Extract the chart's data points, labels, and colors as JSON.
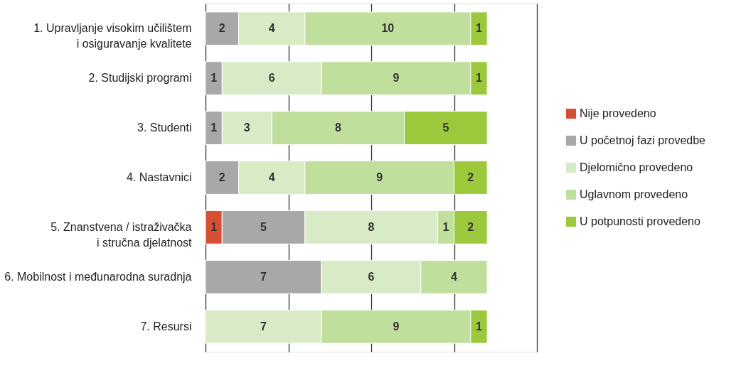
{
  "chart_data": {
    "type": "bar",
    "orientation": "horizontal",
    "stacked": true,
    "data_labels": true,
    "grid": "x",
    "tick_labels": "y",
    "legend": "right",
    "categories": [
      "1. Upravljanje visokim učilištem\ni osiguravanje kvalitete",
      "2. Studijski programi",
      "3. Studenti",
      "4. Nastavnici",
      "5. Znanstvena / istraživačka\ni stručna djelatnost",
      "6. Mobilnost i međunarodna suradnja",
      "7. Resursi"
    ],
    "xlim": [
      0,
      20
    ],
    "xticks": [
      {
        "value": 0,
        "label": null
      },
      {
        "value": 5,
        "label": null
      },
      {
        "value": 10,
        "label": null
      },
      {
        "value": 15,
        "label": null
      },
      {
        "value": 20,
        "label": null
      }
    ],
    "series": [
      {
        "name": "Nije provedeno",
        "color": "#d64f35",
        "values": [
          null,
          null,
          null,
          null,
          1,
          null,
          null
        ]
      },
      {
        "name": "U početnoj fazi provedbe",
        "color": "#a8a8aa",
        "values": [
          2,
          1,
          1,
          2,
          5,
          7,
          null
        ]
      },
      {
        "name": "Djelomično provedeno",
        "color": "#d9ebc6",
        "values": [
          4,
          6,
          3,
          4,
          8,
          6,
          7
        ]
      },
      {
        "name": "Uglavnom provedeno",
        "color": "#c0df9c",
        "values": [
          10,
          9,
          8,
          9,
          1,
          4,
          9
        ]
      },
      {
        "name": "U potpunosti provedeno",
        "color": "#9bc93b",
        "values": [
          1,
          1,
          5,
          2,
          2,
          null,
          1
        ]
      }
    ]
  }
}
